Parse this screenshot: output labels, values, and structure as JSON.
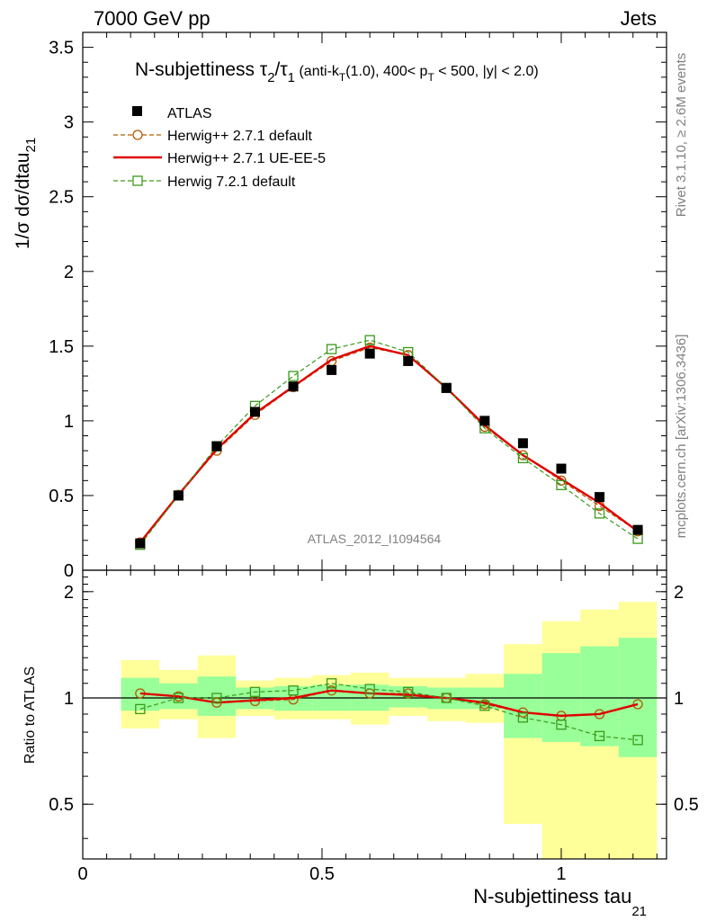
{
  "header": {
    "left": "7000 GeV pp",
    "right": "Jets"
  },
  "side_labels": {
    "rivet": "Rivet 3.1.10, ≥ 2.6M events",
    "mcplots": "mcplots.cern.ch [arXiv:1306.3436]"
  },
  "watermark": "ATLAS_2012_I1094564",
  "chart_data": [
    {
      "type": "line",
      "title": {
        "main": "N-subjettiness τ",
        "sub1": "2",
        "slash": "/τ",
        "sub2": "1",
        "paren1": " (anti-k",
        "sub3": "T",
        "paren2": "(1.0), 400< p",
        "sub4": "T",
        "paren3": " < 500, |y| < 2.0)"
      },
      "ylabel": {
        "text": "1/σ dσ/dtau",
        "sub": "21"
      },
      "ylim": [
        0,
        3.6
      ],
      "yticks": [
        0,
        0.5,
        1,
        1.5,
        2,
        2.5,
        3,
        3.5
      ],
      "ytick_labels": [
        "0",
        "0.5",
        "1",
        "1.5",
        "2",
        "2.5",
        "3",
        "3.5"
      ],
      "xlim": [
        0,
        1.22
      ],
      "legend": {
        "position": "top-left",
        "entries": [
          "ATLAS",
          "Herwig++ 2.7.1 default",
          "Herwig++ 2.7.1 UE-EE-5",
          "Herwig 7.2.1 default"
        ]
      },
      "x": [
        0.12,
        0.2,
        0.28,
        0.36,
        0.44,
        0.52,
        0.6,
        0.68,
        0.76,
        0.84,
        0.92,
        1.0,
        1.08,
        1.16
      ],
      "series": [
        {
          "name": "ATLAS",
          "color": "#000000",
          "values": [
            0.18,
            0.5,
            0.83,
            1.06,
            1.23,
            1.34,
            1.45,
            1.4,
            1.22,
            1.0,
            0.85,
            0.68,
            0.49,
            0.27
          ]
        },
        {
          "name": "Herwig++ 2.7.1 default",
          "color": "#b35a00",
          "values": [
            0.186,
            0.505,
            0.8,
            1.04,
            1.225,
            1.4,
            1.49,
            1.44,
            1.22,
            0.96,
            0.77,
            0.6,
            0.43,
            0.26
          ]
        },
        {
          "name": "Herwig++ 2.7.1 UE-EE-5",
          "color": "#e00000",
          "values": [
            0.186,
            0.505,
            0.81,
            1.05,
            1.23,
            1.41,
            1.5,
            1.44,
            1.22,
            0.97,
            0.77,
            0.61,
            0.45,
            0.26
          ]
        },
        {
          "name": "Herwig 7.2.1 default",
          "color": "#3a9a1a",
          "values": [
            0.17,
            0.5,
            0.83,
            1.1,
            1.3,
            1.48,
            1.54,
            1.46,
            1.22,
            0.95,
            0.75,
            0.57,
            0.38,
            0.21
          ]
        }
      ]
    },
    {
      "type": "line",
      "ylabel": "Ratio to ATLAS",
      "xlabel": {
        "text": "N-subjettiness tau",
        "sub": "21"
      },
      "ylim": [
        0.35,
        2.3
      ],
      "log_scale": "y",
      "yticks": [
        0.5,
        1,
        2
      ],
      "ytick_labels": [
        "0.5",
        "1",
        "2"
      ],
      "xlim": [
        0,
        1.22
      ],
      "xticks": [
        0,
        0.5,
        1
      ],
      "xtick_labels": [
        "0",
        "0.5",
        "1"
      ],
      "bins": [
        {
          "lo": 0.08,
          "hi": 0.16,
          "stat_lo": 0.92,
          "stat_hi": 1.14,
          "tot_lo": 0.82,
          "tot_hi": 1.28
        },
        {
          "lo": 0.16,
          "hi": 0.24,
          "stat_lo": 0.93,
          "stat_hi": 1.1,
          "tot_lo": 0.87,
          "tot_hi": 1.2
        },
        {
          "lo": 0.24,
          "hi": 0.32,
          "stat_lo": 0.89,
          "stat_hi": 1.15,
          "tot_lo": 0.77,
          "tot_hi": 1.32
        },
        {
          "lo": 0.32,
          "hi": 0.4,
          "stat_lo": 0.93,
          "stat_hi": 1.07,
          "tot_lo": 0.89,
          "tot_hi": 1.12
        },
        {
          "lo": 0.4,
          "hi": 0.48,
          "stat_lo": 0.92,
          "stat_hi": 1.08,
          "tot_lo": 0.87,
          "tot_hi": 1.14
        },
        {
          "lo": 0.48,
          "hi": 0.56,
          "stat_lo": 0.92,
          "stat_hi": 1.09,
          "tot_lo": 0.87,
          "tot_hi": 1.16
        },
        {
          "lo": 0.56,
          "hi": 0.64,
          "stat_lo": 0.92,
          "stat_hi": 1.09,
          "tot_lo": 0.84,
          "tot_hi": 1.18
        },
        {
          "lo": 0.64,
          "hi": 0.72,
          "stat_lo": 0.94,
          "stat_hi": 1.08,
          "tot_lo": 0.89,
          "tot_hi": 1.14
        },
        {
          "lo": 0.72,
          "hi": 0.8,
          "stat_lo": 0.93,
          "stat_hi": 1.07,
          "tot_lo": 0.86,
          "tot_hi": 1.14
        },
        {
          "lo": 0.8,
          "hi": 0.88,
          "stat_lo": 0.93,
          "stat_hi": 1.07,
          "tot_lo": 0.85,
          "tot_hi": 1.17
        },
        {
          "lo": 0.88,
          "hi": 0.96,
          "stat_lo": 0.77,
          "stat_hi": 1.17,
          "tot_lo": 0.44,
          "tot_hi": 1.42
        },
        {
          "lo": 0.96,
          "hi": 1.04,
          "stat_lo": 0.75,
          "stat_hi": 1.34,
          "tot_lo": 0.3,
          "tot_hi": 1.65
        },
        {
          "lo": 1.04,
          "hi": 1.12,
          "stat_lo": 0.73,
          "stat_hi": 1.4,
          "tot_lo": 0.3,
          "tot_hi": 1.78
        },
        {
          "lo": 1.12,
          "hi": 1.2,
          "stat_lo": 0.68,
          "stat_hi": 1.48,
          "tot_lo": 0.3,
          "tot_hi": 1.87
        }
      ],
      "band_colors": {
        "stat": "#99ff99",
        "total": "#ffff99"
      },
      "x": [
        0.12,
        0.2,
        0.28,
        0.36,
        0.44,
        0.52,
        0.6,
        0.68,
        0.76,
        0.84,
        0.92,
        1.0,
        1.08,
        1.16
      ],
      "series": [
        {
          "name": "Herwig++ 2.7.1 default",
          "color": "#b35a00",
          "values": [
            1.03,
            1.01,
            0.97,
            0.98,
            0.99,
            1.05,
            1.03,
            1.03,
            1.0,
            0.96,
            0.91,
            0.89,
            0.9,
            0.96
          ]
        },
        {
          "name": "Herwig++ 2.7.1 UE-EE-5",
          "color": "#e00000",
          "values": [
            1.03,
            1.01,
            0.97,
            0.985,
            1.0,
            1.05,
            1.03,
            1.02,
            1.0,
            0.97,
            0.91,
            0.89,
            0.9,
            0.96
          ]
        },
        {
          "name": "Herwig 7.2.1 default",
          "color": "#3a9a1a",
          "values": [
            0.93,
            1.0,
            1.0,
            1.04,
            1.05,
            1.1,
            1.06,
            1.04,
            1.0,
            0.95,
            0.88,
            0.84,
            0.78,
            0.76
          ]
        }
      ]
    }
  ]
}
